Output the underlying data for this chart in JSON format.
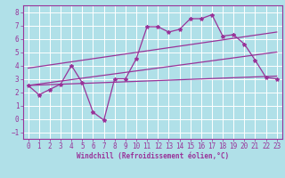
{
  "background_color": "#b0e0e8",
  "grid_color": "#ffffff",
  "line_color": "#993399",
  "xlabel": "Windchill (Refroidissement éolien,°C)",
  "xlim": [
    -0.5,
    23.5
  ],
  "ylim": [
    -1.5,
    8.5
  ],
  "xticks": [
    0,
    1,
    2,
    3,
    4,
    5,
    6,
    7,
    8,
    9,
    10,
    11,
    12,
    13,
    14,
    15,
    16,
    17,
    18,
    19,
    20,
    21,
    22,
    23
  ],
  "yticks": [
    -1,
    0,
    1,
    2,
    3,
    4,
    5,
    6,
    7,
    8
  ],
  "line1_x": [
    0,
    1,
    2,
    3,
    4,
    5,
    6,
    7,
    8,
    9,
    10,
    11,
    12,
    13,
    14,
    15,
    16,
    17,
    18,
    19,
    20,
    21,
    22,
    23
  ],
  "line1_y": [
    2.5,
    1.8,
    2.2,
    2.6,
    4.0,
    2.7,
    0.5,
    -0.1,
    3.0,
    3.0,
    4.5,
    6.9,
    6.9,
    6.5,
    6.7,
    7.5,
    7.5,
    7.8,
    6.2,
    6.3,
    5.6,
    4.4,
    3.1,
    3.0
  ],
  "line2_x": [
    0,
    23
  ],
  "line2_y": [
    2.5,
    3.2
  ],
  "line3_x": [
    0,
    23
  ],
  "line3_y": [
    2.5,
    5.0
  ],
  "line4_x": [
    0,
    23
  ],
  "line4_y": [
    3.8,
    6.5
  ]
}
